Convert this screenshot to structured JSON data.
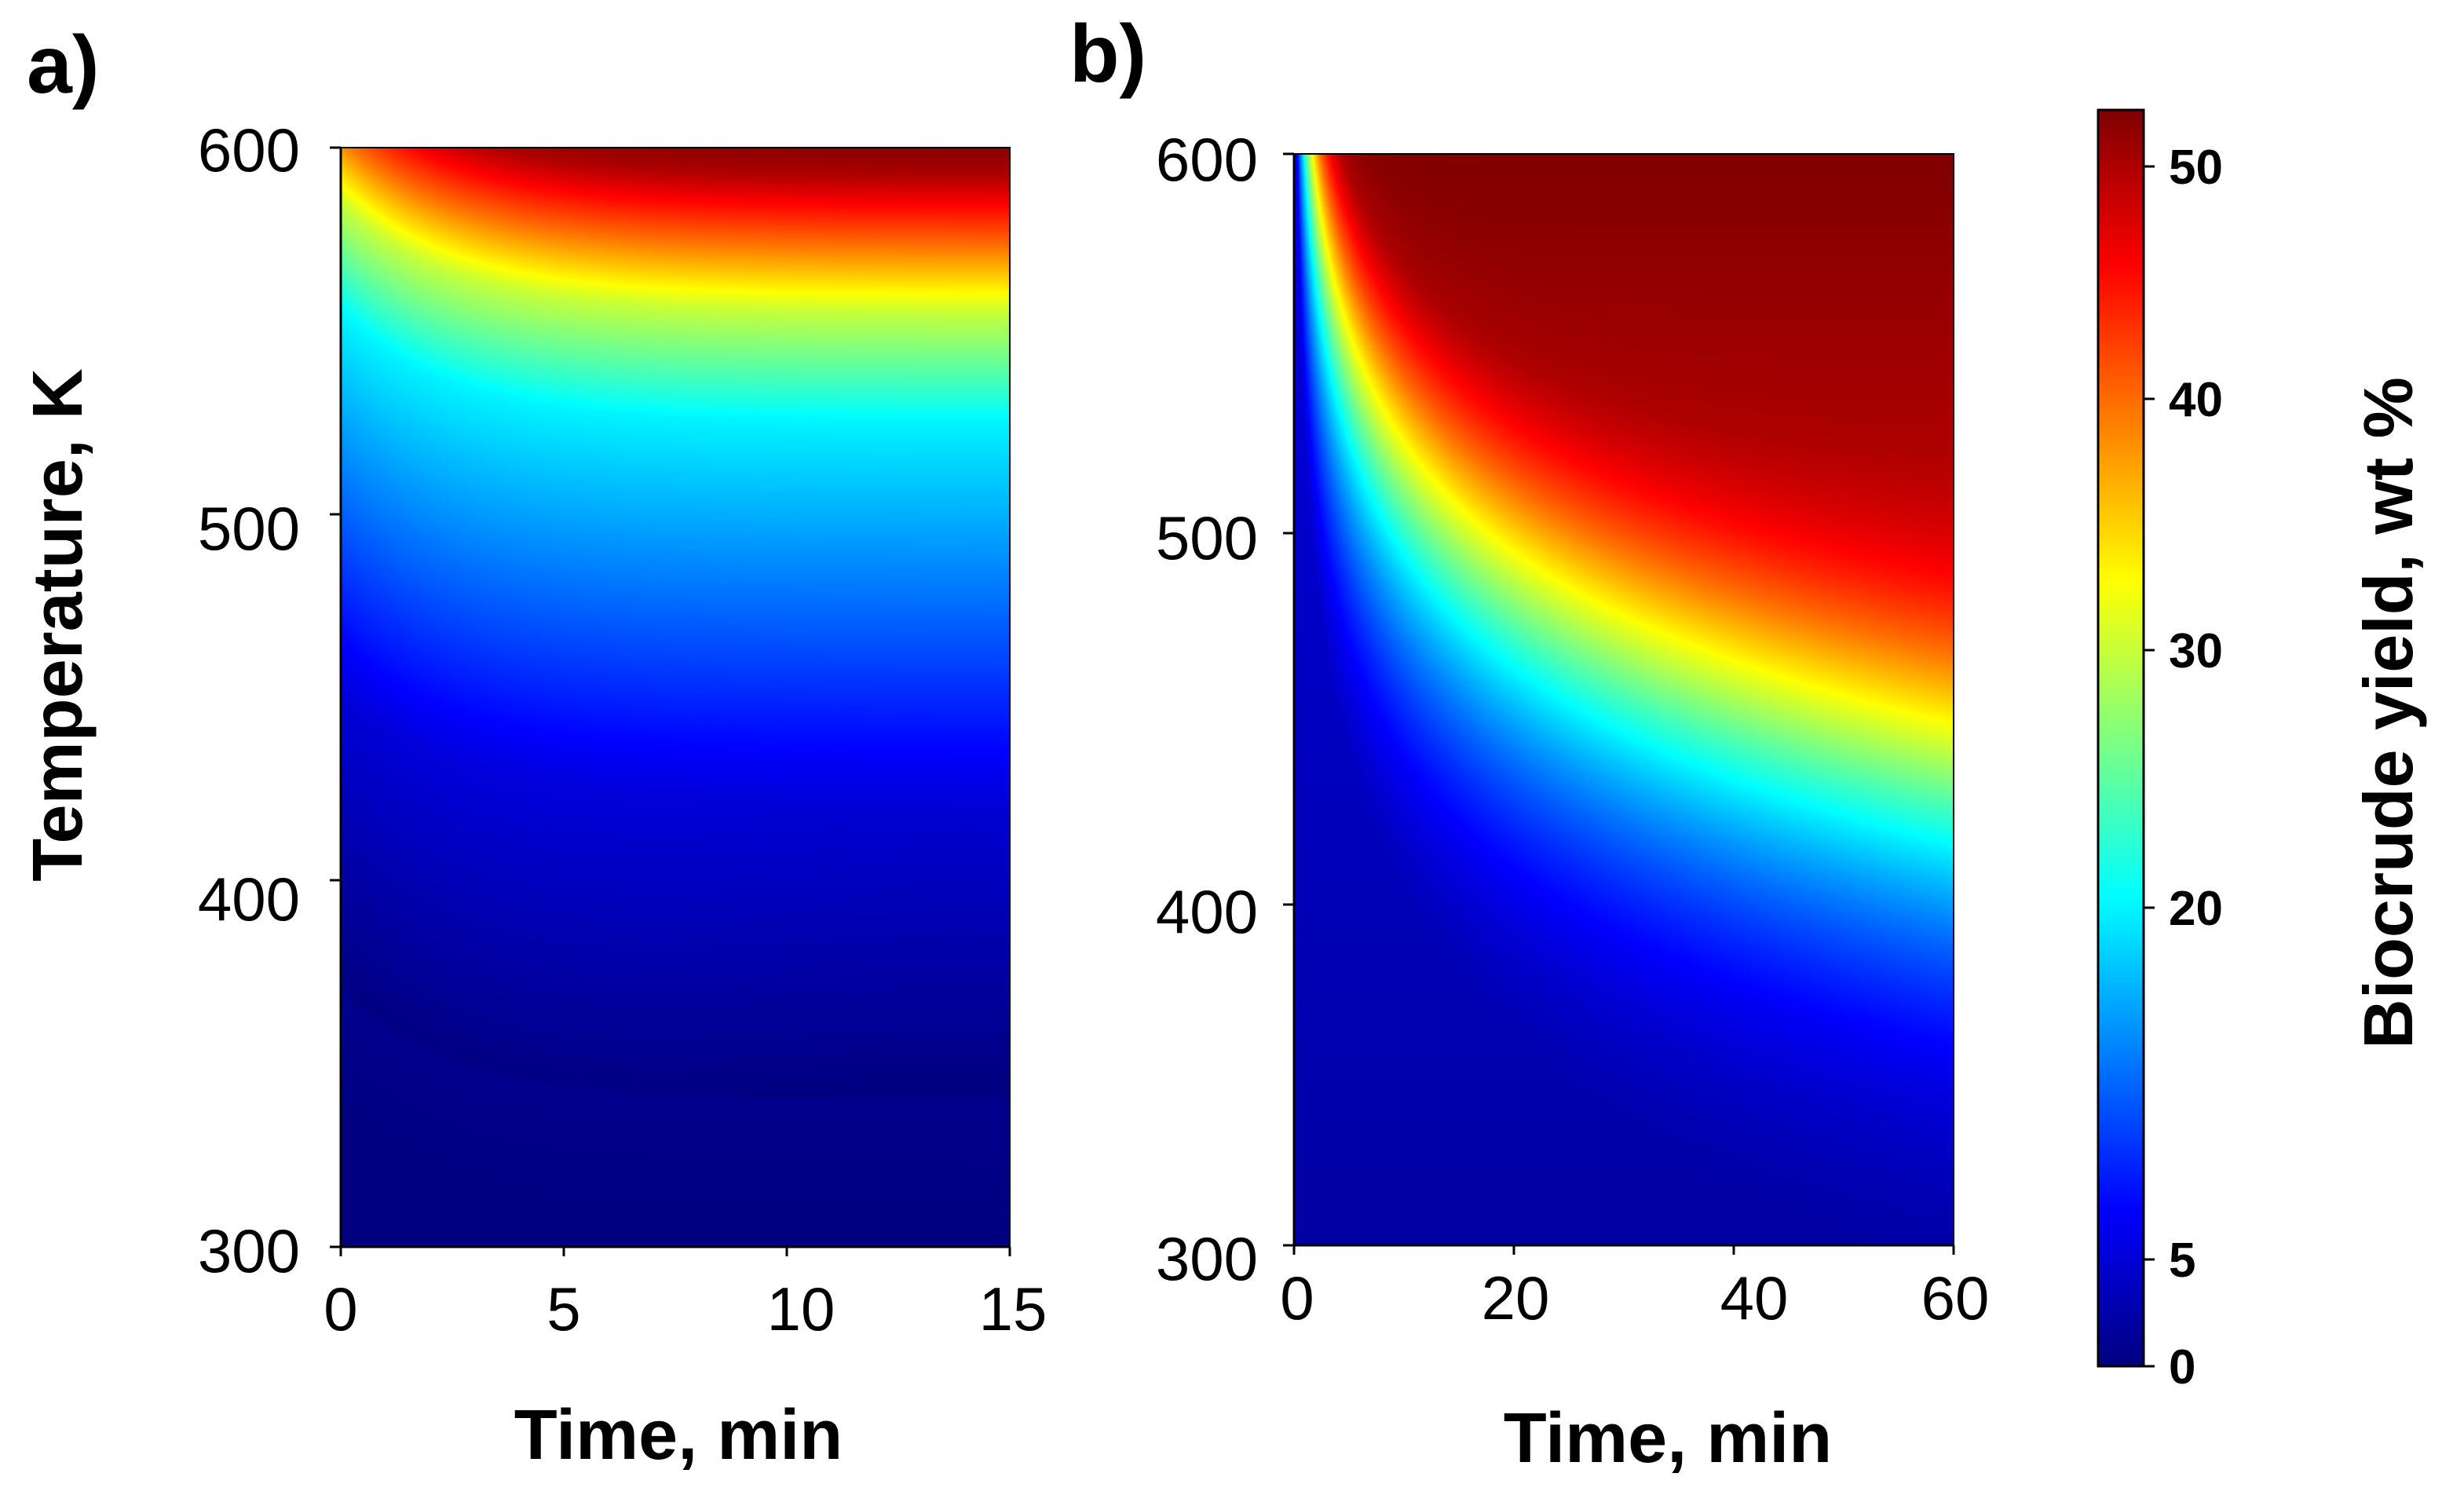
{
  "chart_data": [
    {
      "type": "heatmap",
      "panel_label": "a)",
      "xlabel": "Time, min",
      "ylabel": "Temperature, K",
      "xlim": [
        0,
        15
      ],
      "ylim": [
        300,
        600
      ],
      "x_ticks": [
        "0",
        "5",
        "10",
        "15"
      ],
      "y_ticks": [
        "300",
        "400",
        "500",
        "600"
      ],
      "z_at_600K_by_time": [
        [
          0,
          50
        ],
        [
          5,
          52
        ],
        [
          10,
          53
        ],
        [
          15,
          54
        ]
      ],
      "contours": [
        {
          "z": 30,
          "points": [
            [
              0,
              585
            ],
            [
              2,
              571
            ],
            [
              4,
              563
            ],
            [
              6,
              558
            ],
            [
              8,
              556
            ],
            [
              10,
              555
            ],
            [
              15,
              554
            ]
          ]
        },
        {
          "z": 20,
          "points": [
            [
              0,
              565
            ],
            [
              2,
              548
            ],
            [
              4,
              536
            ],
            [
              6,
              529
            ],
            [
              8,
              526
            ],
            [
              10,
              525
            ],
            [
              15,
              525
            ]
          ]
        },
        {
          "z": 5,
          "points": [
            [
              0,
              420
            ],
            [
              15,
              420
            ]
          ]
        },
        {
          "z": 0,
          "points": [
            [
              0,
              340
            ],
            [
              15,
              340
            ]
          ]
        }
      ]
    },
    {
      "type": "heatmap",
      "panel_label": "b)",
      "xlabel": "Time, min",
      "ylabel": "",
      "xlim": [
        0,
        60
      ],
      "ylim": [
        300,
        600
      ],
      "x_ticks": [
        "0",
        "20",
        "40",
        "60"
      ],
      "y_ticks": [
        "300",
        "400",
        "500",
        "600"
      ],
      "z_at_600K_by_time": [
        [
          0,
          45
        ],
        [
          20,
          50
        ],
        [
          40,
          53
        ],
        [
          60,
          55
        ]
      ],
      "contours": [
        {
          "z": 30,
          "points": [
            [
              0,
              595
            ],
            [
              5,
              565
            ],
            [
              10,
              535
            ],
            [
              15,
              512
            ],
            [
              20,
              495
            ],
            [
              25,
              477
            ],
            [
              30,
              462
            ],
            [
              40,
              452
            ],
            [
              60,
              448
            ]
          ]
        },
        {
          "z": 20,
          "points": [
            [
              0,
              590
            ],
            [
              5,
              530
            ],
            [
              10,
              470
            ],
            [
              15,
              440
            ],
            [
              20,
              420
            ],
            [
              30,
              400
            ],
            [
              40,
              390
            ],
            [
              60,
              385
            ]
          ]
        },
        {
          "z": 10,
          "points": [
            [
              0,
              585
            ],
            [
              3,
              500
            ],
            [
              6,
              420
            ],
            [
              10,
              360
            ],
            [
              15,
              330
            ],
            [
              20,
              315
            ],
            [
              30,
              305
            ],
            [
              60,
              300
            ]
          ]
        },
        {
          "z": 2,
          "points": [
            [
              0,
              420
            ],
            [
              1,
              400
            ]
          ]
        }
      ]
    }
  ],
  "colorbar": {
    "label": "Biocrude yield, wt %",
    "range": [
      0,
      55
    ],
    "ticks": [
      "0",
      "5",
      "20",
      "30",
      "40",
      "50"
    ],
    "colormap": [
      "#00007f",
      "#0000ff",
      "#00ffff",
      "#ffff00",
      "#ff0000",
      "#7f0000"
    ]
  }
}
